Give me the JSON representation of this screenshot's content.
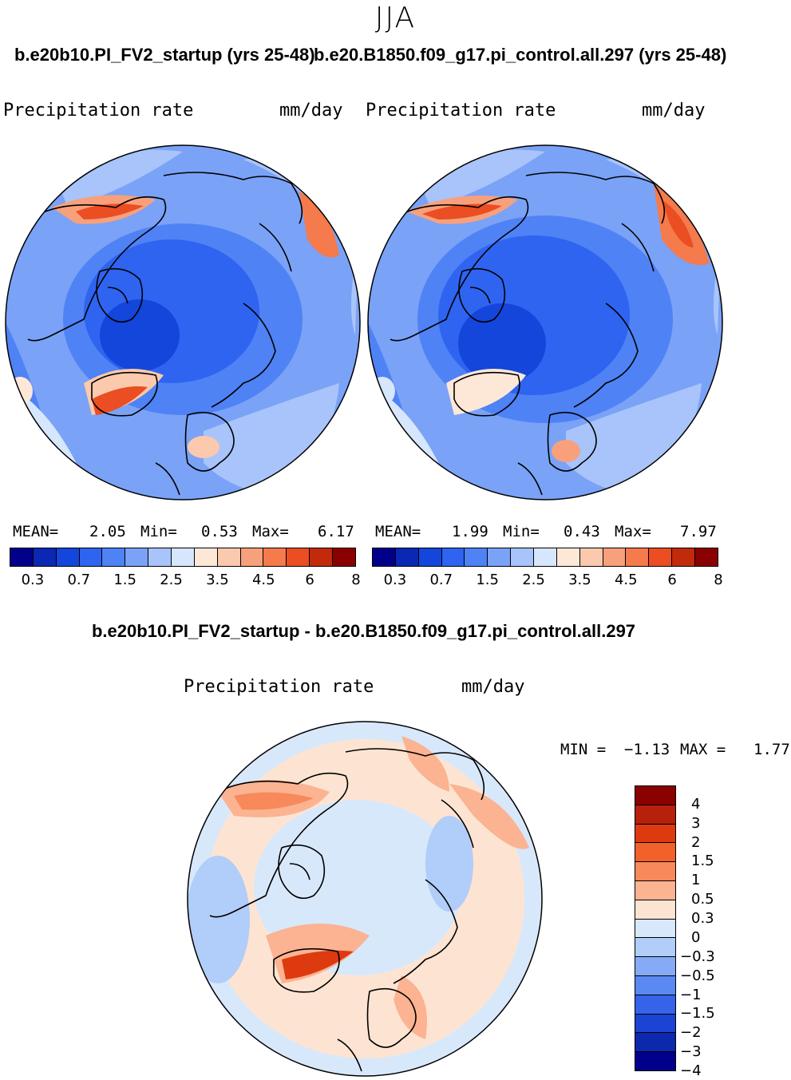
{
  "figure": {
    "season": "JJA",
    "diff_title": "b.e20b10.PI_FV2_startup - b.e20.B1850.f09_g17.pi_control.all.297"
  },
  "colors": {
    "abs_palette": [
      "#00008b",
      "#0a28b4",
      "#1446dc",
      "#2e64f0",
      "#4f82f5",
      "#7aa2f7",
      "#a8c4fa",
      "#d6e6fc",
      "#fde8d8",
      "#fbc9ad",
      "#f8a07c",
      "#f57a4c",
      "#ea4e22",
      "#c22a0c",
      "#8b0000"
    ],
    "diff_palette": [
      "#8b0000",
      "#b7200a",
      "#de3a10",
      "#f2612a",
      "#f8895a",
      "#fbb392",
      "#fde4d2",
      "#d8e8fb",
      "#b1cdf9",
      "#85abf6",
      "#5a8af1",
      "#3563ea",
      "#1b43d4",
      "#0c29ad",
      "#00008b"
    ],
    "land_outline": "#000000"
  },
  "panels": [
    {
      "case_title": "b.e20b10.PI_FV2_startup (yrs 25-48)",
      "variable": "Precipitation rate",
      "units": "mm/day",
      "mean_label": "MEAN=",
      "mean": "2.05",
      "min_label": "Min=",
      "min": "0.53",
      "max_label": "Max=",
      "max": "6.17",
      "colorbar_ticks": [
        "0.3",
        "0.7",
        "1.5",
        "2.5",
        "3.5",
        "4.5",
        "6",
        "8"
      ]
    },
    {
      "case_title": "b.e20.B1850.f09_g17.pi_control.all.297 (yrs 25-48)",
      "variable": "Precipitation rate",
      "units": "mm/day",
      "mean_label": "MEAN=",
      "mean": "1.99",
      "min_label": "Min=",
      "min": "0.43",
      "max_label": "Max=",
      "max": "7.97",
      "colorbar_ticks": [
        "0.3",
        "0.7",
        "1.5",
        "2.5",
        "3.5",
        "4.5",
        "6",
        "8"
      ]
    }
  ],
  "diff_panel": {
    "variable": "Precipitation rate",
    "units": "mm/day",
    "min_label": "MIN =",
    "min": "−1.13",
    "max_label": "MAX =",
    "max": "1.77",
    "colorbar_ticks": [
      "4",
      "3",
      "2",
      "1.5",
      "1",
      "0.5",
      "0.3",
      "0",
      "−0.3",
      "−0.5",
      "−1",
      "−1.5",
      "−2",
      "−3",
      "−4"
    ]
  }
}
